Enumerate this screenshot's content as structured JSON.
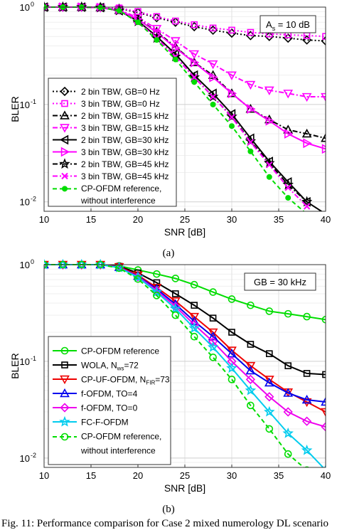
{
  "panels": [
    {
      "label": "(a)",
      "annotation": "A_s = 10 dB",
      "annotation_main": "A",
      "annotation_sub": "s",
      "annotation_rest": " = 10 dB"
    },
    {
      "label": "(b)",
      "annotation": "GB = 30 kHz"
    }
  ],
  "caption": "Fig. 11: Performance comparison for Case 2 mixed numerology DL scenario",
  "chart_data": [
    {
      "type": "line",
      "xlabel": "SNR [dB]",
      "ylabel": "BLER",
      "xlim": [
        10,
        40
      ],
      "ylim": [
        0.008,
        1
      ],
      "yscale": "log",
      "grid": true,
      "legend_position": "bottom-left",
      "xticks": [
        10,
        15,
        20,
        25,
        30,
        35,
        40
      ],
      "yticks": [
        {
          "v": 0.01,
          "label": "10",
          "exp": "-2"
        },
        {
          "v": 0.1,
          "label": "10",
          "exp": "-1"
        },
        {
          "v": 1,
          "label": "10",
          "exp": "0"
        }
      ],
      "x": [
        10,
        12,
        14,
        16,
        18,
        20,
        22,
        24,
        26,
        28,
        30,
        32,
        34,
        36,
        38,
        40
      ],
      "series": [
        {
          "name": "2 bin TBW, GB=0 Hz",
          "color": "#000000",
          "dash": "dot",
          "marker": "diamond",
          "values": [
            1,
            1,
            1,
            1,
            0.97,
            0.88,
            0.78,
            0.7,
            0.63,
            0.58,
            0.54,
            0.51,
            0.5,
            0.48,
            0.46,
            0.45
          ]
        },
        {
          "name": "3 bin TBW, GB=0 Hz",
          "color": "#ff00ff",
          "dash": "dot",
          "marker": "square",
          "values": [
            1,
            1,
            1,
            1,
            0.98,
            0.9,
            0.8,
            0.72,
            0.66,
            0.61,
            0.58,
            0.55,
            0.53,
            0.52,
            0.51,
            0.5
          ]
        },
        {
          "name": "2 bin TBW, GB=15 kHz",
          "color": "#000000",
          "dash": "dashdot",
          "marker": "triangle-up",
          "values": [
            1,
            1,
            1,
            0.99,
            0.93,
            0.76,
            0.56,
            0.39,
            0.27,
            0.2,
            0.13,
            0.09,
            0.07,
            0.055,
            0.05,
            0.045
          ]
        },
        {
          "name": "3 bin TBW, GB=15 kHz",
          "color": "#ff00ff",
          "dash": "dashdot",
          "marker": "triangle-down",
          "values": [
            1,
            1,
            1,
            0.99,
            0.94,
            0.78,
            0.6,
            0.45,
            0.33,
            0.26,
            0.2,
            0.16,
            0.14,
            0.13,
            0.12,
            0.12
          ]
        },
        {
          "name": "2 bin TBW, GB=30 kHz",
          "color": "#000000",
          "dash": "solid",
          "marker": "triangle-left",
          "values": [
            1,
            1,
            1,
            0.99,
            0.92,
            0.72,
            0.5,
            0.33,
            0.2,
            0.13,
            0.08,
            0.045,
            0.026,
            0.016,
            0.01,
            0.0075
          ]
        },
        {
          "name": "3 bin TBW, GB=30 kHz",
          "color": "#ff00ff",
          "dash": "solid",
          "marker": "triangle-right",
          "values": [
            1,
            1,
            1,
            0.99,
            0.93,
            0.75,
            0.55,
            0.38,
            0.27,
            0.19,
            0.13,
            0.09,
            0.068,
            0.05,
            0.04,
            0.035
          ]
        },
        {
          "name": "2 bin TBW, GB=45 kHz",
          "color": "#000000",
          "dash": "dashdot",
          "marker": "star",
          "values": [
            1,
            1,
            1,
            0.99,
            0.92,
            0.71,
            0.48,
            0.31,
            0.19,
            0.12,
            0.075,
            0.042,
            0.025,
            0.015,
            0.01,
            null
          ]
        },
        {
          "name": "3 bin TBW, GB=45 kHz",
          "color": "#ff00ff",
          "dash": "dashdot",
          "marker": "x",
          "values": [
            1,
            1,
            1,
            0.99,
            0.92,
            0.71,
            0.48,
            0.31,
            0.19,
            0.12,
            0.074,
            0.041,
            0.024,
            0.014,
            0.009,
            null
          ]
        },
        {
          "name": "CP-OFDM reference,\nwithout interference",
          "color": "#00dd00",
          "dash": "dashed",
          "marker": "dot",
          "values": [
            1,
            1,
            1,
            0.99,
            0.92,
            0.7,
            0.46,
            0.29,
            0.17,
            0.1,
            0.06,
            0.033,
            0.018,
            0.011,
            0.0075,
            null
          ]
        }
      ]
    },
    {
      "type": "line",
      "xlabel": "SNR [dB]",
      "ylabel": "BLER",
      "xlim": [
        10,
        40
      ],
      "ylim": [
        0.008,
        1
      ],
      "yscale": "log",
      "grid": true,
      "legend_position": "bottom-left",
      "xticks": [
        10,
        15,
        20,
        25,
        30,
        35,
        40
      ],
      "yticks": [
        {
          "v": 0.01,
          "label": "10",
          "exp": "-2"
        },
        {
          "v": 0.1,
          "label": "10",
          "exp": "-1"
        },
        {
          "v": 1,
          "label": "10",
          "exp": "0"
        }
      ],
      "x": [
        10,
        12,
        14,
        16,
        18,
        20,
        22,
        24,
        26,
        28,
        30,
        32,
        34,
        36,
        38,
        40
      ],
      "series": [
        {
          "name": "CP-OFDM reference",
          "color": "#00dd00",
          "dash": "solid",
          "marker": "circle",
          "values": [
            1,
            1,
            1,
            1,
            0.97,
            0.88,
            0.8,
            0.72,
            0.62,
            0.52,
            0.44,
            0.38,
            0.33,
            0.31,
            0.29,
            0.27
          ]
        },
        {
          "name": "WOLA, N_ws=72",
          "name_main": "WOLA, N",
          "name_sub": "ws",
          "name_rest": "=72",
          "color": "#000000",
          "dash": "solid",
          "marker": "square",
          "values": [
            1,
            1,
            1,
            1,
            0.96,
            0.82,
            0.65,
            0.5,
            0.38,
            0.28,
            0.2,
            0.15,
            0.12,
            0.09,
            0.075,
            0.073
          ]
        },
        {
          "name": "CP-UF-OFDM, N_FIR=73",
          "name_main": "CP-UF-OFDM, N",
          "name_sub": "FIR",
          "name_rest": "=73",
          "color": "#ee0000",
          "dash": "solid",
          "marker": "triangle-down",
          "values": [
            1,
            1,
            1,
            1,
            0.95,
            0.78,
            0.58,
            0.42,
            0.29,
            0.2,
            0.13,
            0.09,
            0.065,
            0.048,
            0.038,
            0.03
          ]
        },
        {
          "name": "f-OFDM, TO=4",
          "color": "#0000ee",
          "dash": "solid",
          "marker": "triangle-up",
          "values": [
            1,
            1,
            1,
            1,
            0.94,
            0.76,
            0.56,
            0.39,
            0.26,
            0.18,
            0.12,
            0.08,
            0.06,
            0.047,
            0.04,
            0.038
          ]
        },
        {
          "name": "f-OFDM, TO=0",
          "color": "#ee00ee",
          "dash": "solid",
          "marker": "diamond",
          "values": [
            1,
            1,
            1,
            1,
            0.94,
            0.75,
            0.54,
            0.37,
            0.24,
            0.16,
            0.1,
            0.065,
            0.043,
            0.03,
            0.024,
            0.021
          ]
        },
        {
          "name": "FC-F-OFDM",
          "color": "#00ccee",
          "dash": "solid",
          "marker": "star",
          "values": [
            1,
            1,
            1,
            1,
            0.93,
            0.74,
            0.52,
            0.35,
            0.22,
            0.14,
            0.085,
            0.05,
            0.03,
            0.018,
            0.012,
            0.0075
          ]
        },
        {
          "name": "CP-OFDM reference,\nwithout interference",
          "color": "#00dd00",
          "dash": "dashed",
          "marker": "circle",
          "values": [
            1,
            1,
            1,
            1,
            0.92,
            0.71,
            0.48,
            0.3,
            0.18,
            0.11,
            0.065,
            0.035,
            0.02,
            0.011,
            0.0075,
            null
          ]
        }
      ]
    }
  ]
}
